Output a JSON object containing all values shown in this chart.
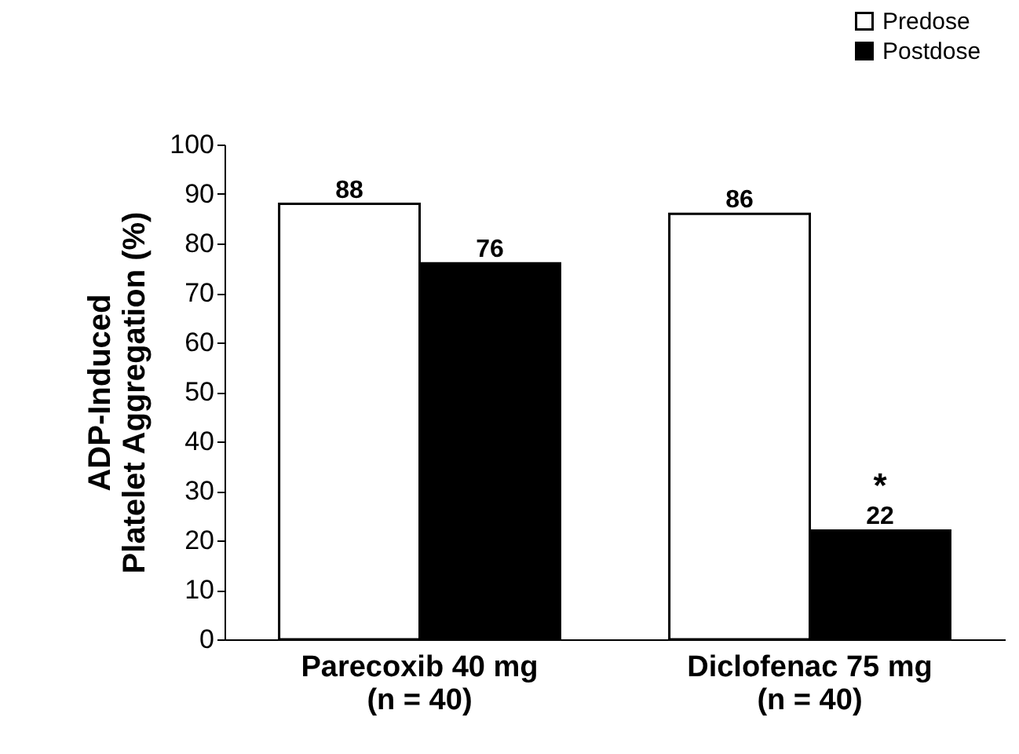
{
  "chart_data": {
    "type": "bar",
    "ylabel": "ADP-Induced\nPlatelet Aggregation (%)",
    "categories": [
      "Parecoxib 40 mg\n(n = 40)",
      "Diclofenac 75 mg\n(n = 40)"
    ],
    "series": [
      {
        "name": "Predose",
        "color": "#ffffff",
        "values": [
          88,
          86
        ]
      },
      {
        "name": "Postdose",
        "color": "#000000",
        "values": [
          76,
          22
        ]
      }
    ],
    "ylim": [
      0,
      100
    ],
    "yticks": [
      0,
      10,
      20,
      30,
      40,
      50,
      60,
      70,
      80,
      90,
      100
    ],
    "grid": false,
    "legend": "top right",
    "data_labels": true,
    "annotations": [
      {
        "text": "*",
        "x": "Diclofenac 75 mg\n(n = 40)",
        "y": 22
      }
    ]
  }
}
